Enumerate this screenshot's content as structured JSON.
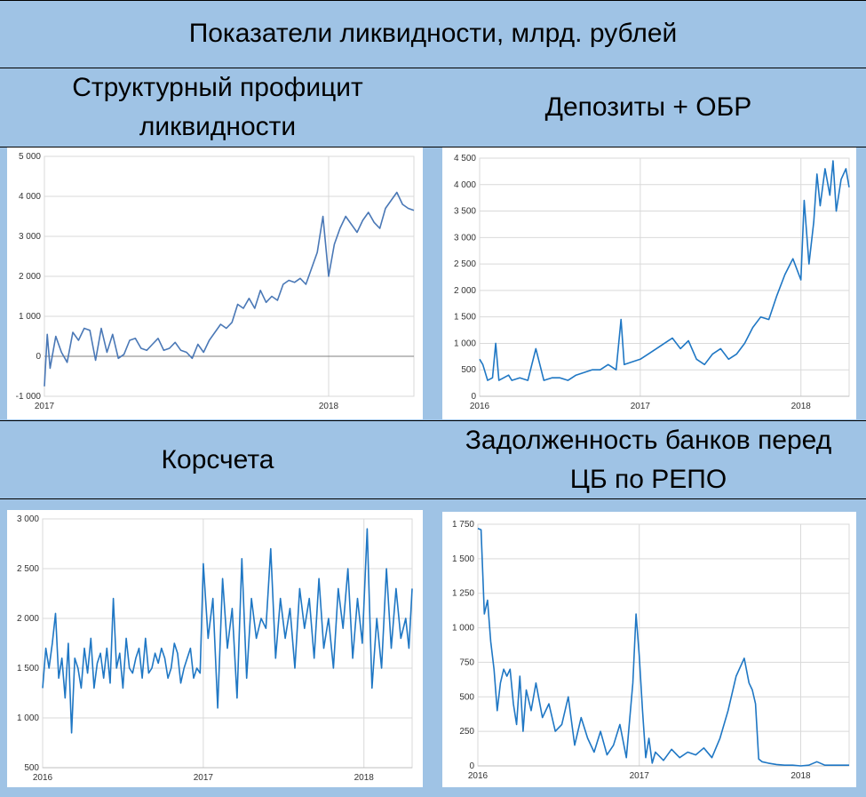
{
  "header": {
    "title": "Показатели ликвидности, млрд. рублей"
  },
  "panels": {
    "structural_surplus": {
      "title": "Структурный профицит ликвидности"
    },
    "deposits_obr": {
      "title": "Депозиты + ОБР"
    },
    "corr_accounts": {
      "title": "Корсчета"
    },
    "repo_debt": {
      "title": "Задолженность банков перед ЦБ по РЕПО"
    }
  },
  "colors": {
    "line": "#1f77c4",
    "line_alt": "#4a78b6",
    "background": "#9fc3e5"
  },
  "chart_data": [
    {
      "id": "structural_surplus",
      "type": "line",
      "title": "Структурный профицит ликвидности",
      "x_range": [
        2017.0,
        2018.3
      ],
      "ylim": [
        -1000,
        5000
      ],
      "yticks": [
        -1000,
        0,
        1000,
        2000,
        3000,
        4000,
        5000
      ],
      "ytick_labels": [
        "-1 000",
        "0",
        "1 000",
        "2 000",
        "3 000",
        "4 000",
        "5 000"
      ],
      "xticks": [
        2017,
        2018
      ],
      "xtick_labels": [
        "2017",
        "2018"
      ],
      "zero_line": true,
      "series": [
        {
          "x": [
            2017.0,
            2017.01,
            2017.02,
            2017.04,
            2017.06,
            2017.08,
            2017.1,
            2017.12,
            2017.14,
            2017.16,
            2017.18,
            2017.2,
            2017.22,
            2017.24,
            2017.26,
            2017.28,
            2017.3,
            2017.32,
            2017.34,
            2017.36,
            2017.38,
            2017.4,
            2017.42,
            2017.44,
            2017.46,
            2017.48,
            2017.5,
            2017.52,
            2017.54,
            2017.56,
            2017.58,
            2017.6,
            2017.62,
            2017.64,
            2017.66,
            2017.68,
            2017.7,
            2017.72,
            2017.74,
            2017.76,
            2017.78,
            2017.8,
            2017.82,
            2017.84,
            2017.86,
            2017.88,
            2017.9,
            2017.92,
            2017.94,
            2017.96,
            2017.98,
            2018.0,
            2018.02,
            2018.04,
            2018.06,
            2018.08,
            2018.1,
            2018.12,
            2018.14,
            2018.16,
            2018.18,
            2018.2,
            2018.22,
            2018.24,
            2018.26,
            2018.28,
            2018.3
          ],
          "y": [
            -750,
            550,
            -300,
            500,
            100,
            -150,
            600,
            400,
            700,
            650,
            -100,
            700,
            100,
            550,
            -50,
            50,
            400,
            450,
            200,
            150,
            300,
            450,
            150,
            200,
            350,
            150,
            100,
            -50,
            300,
            100,
            400,
            600,
            800,
            700,
            850,
            1300,
            1200,
            1450,
            1200,
            1650,
            1350,
            1500,
            1400,
            1800,
            1900,
            1850,
            1950,
            1800,
            2200,
            2600,
            3500,
            2000,
            2800,
            3200,
            3500,
            3300,
            3100,
            3400,
            3600,
            3350,
            3200,
            3700,
            3900,
            4100,
            3800,
            3700,
            3650
          ]
        }
      ]
    },
    {
      "id": "deposits_obr",
      "type": "line",
      "title": "Депозиты + ОБР",
      "x_range": [
        2016.0,
        2018.3
      ],
      "ylim": [
        0,
        4500
      ],
      "yticks": [
        0,
        500,
        1000,
        1500,
        2000,
        2500,
        3000,
        3500,
        4000,
        4500
      ],
      "ytick_labels": [
        "0",
        "500",
        "1 000",
        "1 500",
        "2 000",
        "2 500",
        "3 000",
        "3 500",
        "4 000",
        "4 500"
      ],
      "xticks": [
        2016,
        2017,
        2018
      ],
      "xtick_labels": [
        "2016",
        "2017",
        "2018"
      ],
      "series": [
        {
          "x": [
            2016.0,
            2016.02,
            2016.05,
            2016.08,
            2016.1,
            2016.12,
            2016.15,
            2016.18,
            2016.2,
            2016.25,
            2016.3,
            2016.35,
            2016.4,
            2016.45,
            2016.5,
            2016.55,
            2016.6,
            2016.65,
            2016.7,
            2016.75,
            2016.8,
            2016.85,
            2016.88,
            2016.9,
            2016.95,
            2017.0,
            2017.05,
            2017.1,
            2017.15,
            2017.2,
            2017.25,
            2017.3,
            2017.35,
            2017.4,
            2017.45,
            2017.5,
            2017.55,
            2017.6,
            2017.65,
            2017.7,
            2017.75,
            2017.8,
            2017.85,
            2017.9,
            2017.95,
            2018.0,
            2018.02,
            2018.05,
            2018.08,
            2018.1,
            2018.12,
            2018.15,
            2018.18,
            2018.2,
            2018.22,
            2018.25,
            2018.28,
            2018.3
          ],
          "y": [
            700,
            600,
            300,
            350,
            1000,
            300,
            350,
            400,
            300,
            350,
            300,
            900,
            300,
            350,
            350,
            300,
            400,
            450,
            500,
            500,
            600,
            500,
            1450,
            600,
            650,
            700,
            800,
            900,
            1000,
            1100,
            900,
            1050,
            700,
            600,
            800,
            900,
            700,
            800,
            1000,
            1300,
            1500,
            1450,
            1900,
            2300,
            2600,
            2200,
            3700,
            2500,
            3300,
            4200,
            3600,
            4300,
            3800,
            4450,
            3500,
            4100,
            4300,
            3950
          ]
        }
      ]
    },
    {
      "id": "corr_accounts",
      "type": "line",
      "title": "Корсчета",
      "x_range": [
        2016.0,
        2018.3
      ],
      "ylim": [
        500,
        3000
      ],
      "yticks": [
        500,
        1000,
        1500,
        2000,
        2500,
        3000
      ],
      "ytick_labels": [
        "500",
        "1 000",
        "1 500",
        "2 000",
        "2 500",
        "3 000"
      ],
      "xticks": [
        2016,
        2017,
        2018
      ],
      "xtick_labels": [
        "2016",
        "2017",
        "2018"
      ],
      "series": [
        {
          "x": [
            2016.0,
            2016.02,
            2016.04,
            2016.06,
            2016.08,
            2016.1,
            2016.12,
            2016.14,
            2016.16,
            2016.18,
            2016.2,
            2016.22,
            2016.24,
            2016.26,
            2016.28,
            2016.3,
            2016.32,
            2016.34,
            2016.36,
            2016.38,
            2016.4,
            2016.42,
            2016.44,
            2016.46,
            2016.48,
            2016.5,
            2016.52,
            2016.54,
            2016.56,
            2016.58,
            2016.6,
            2016.62,
            2016.64,
            2016.66,
            2016.68,
            2016.7,
            2016.72,
            2016.74,
            2016.76,
            2016.78,
            2016.8,
            2016.82,
            2016.84,
            2016.86,
            2016.88,
            2016.9,
            2016.92,
            2016.94,
            2016.96,
            2016.98,
            2017.0,
            2017.03,
            2017.06,
            2017.09,
            2017.12,
            2017.15,
            2017.18,
            2017.21,
            2017.24,
            2017.27,
            2017.3,
            2017.33,
            2017.36,
            2017.39,
            2017.42,
            2017.45,
            2017.48,
            2017.51,
            2017.54,
            2017.57,
            2017.6,
            2017.63,
            2017.66,
            2017.69,
            2017.72,
            2017.75,
            2017.78,
            2017.81,
            2017.84,
            2017.87,
            2017.9,
            2017.93,
            2017.96,
            2017.99,
            2018.02,
            2018.05,
            2018.08,
            2018.11,
            2018.14,
            2018.17,
            2018.2,
            2018.23,
            2018.26,
            2018.28,
            2018.3
          ],
          "y": [
            1300,
            1700,
            1500,
            1750,
            2050,
            1400,
            1600,
            1200,
            1750,
            850,
            1600,
            1500,
            1300,
            1700,
            1450,
            1800,
            1300,
            1550,
            1650,
            1400,
            1700,
            1350,
            2200,
            1500,
            1650,
            1300,
            1800,
            1500,
            1450,
            1600,
            1700,
            1400,
            1800,
            1450,
            1500,
            1650,
            1550,
            1700,
            1600,
            1400,
            1500,
            1750,
            1650,
            1350,
            1500,
            1600,
            1700,
            1400,
            1500,
            1450,
            2550,
            1800,
            2200,
            1100,
            2400,
            1700,
            2100,
            1200,
            2600,
            1400,
            2200,
            1800,
            2000,
            1900,
            2700,
            1600,
            2200,
            1800,
            2100,
            1500,
            2300,
            1900,
            2200,
            1600,
            2400,
            1700,
            2000,
            1500,
            2300,
            1900,
            2500,
            1600,
            2200,
            1750,
            2900,
            1300,
            2000,
            1500,
            2500,
            1700,
            2300,
            1800,
            2000,
            1700,
            2300
          ]
        }
      ]
    },
    {
      "id": "repo_debt",
      "type": "line",
      "title": "Задолженность банков перед ЦБ по РЕПО",
      "x_range": [
        2016.0,
        2018.3
      ],
      "ylim": [
        0,
        1750
      ],
      "yticks": [
        0,
        250,
        500,
        750,
        1000,
        1250,
        1500,
        1750
      ],
      "ytick_labels": [
        "0",
        "250",
        "500",
        "750",
        "1 000",
        "1 250",
        "1 500",
        "1 750"
      ],
      "xticks": [
        2016,
        2017,
        2018
      ],
      "xtick_labels": [
        "2016",
        "2017",
        "2018"
      ],
      "series": [
        {
          "x": [
            2016.0,
            2016.02,
            2016.04,
            2016.06,
            2016.08,
            2016.1,
            2016.12,
            2016.14,
            2016.16,
            2016.18,
            2016.2,
            2016.22,
            2016.24,
            2016.26,
            2016.28,
            2016.3,
            2016.33,
            2016.36,
            2016.4,
            2016.44,
            2016.48,
            2016.52,
            2016.56,
            2016.6,
            2016.64,
            2016.68,
            2016.72,
            2016.76,
            2016.8,
            2016.84,
            2016.88,
            2016.92,
            2016.96,
            2016.98,
            2017.0,
            2017.02,
            2017.04,
            2017.06,
            2017.08,
            2017.1,
            2017.15,
            2017.2,
            2017.25,
            2017.3,
            2017.35,
            2017.4,
            2017.45,
            2017.5,
            2017.55,
            2017.6,
            2017.65,
            2017.68,
            2017.7,
            2017.72,
            2017.74,
            2017.76,
            2017.8,
            2017.85,
            2017.9,
            2017.95,
            2018.0,
            2018.05,
            2018.1,
            2018.15,
            2018.2,
            2018.25,
            2018.3
          ],
          "y": [
            1720,
            1710,
            1100,
            1200,
            900,
            700,
            400,
            600,
            700,
            650,
            700,
            450,
            300,
            650,
            250,
            550,
            400,
            600,
            350,
            450,
            250,
            300,
            500,
            150,
            350,
            200,
            100,
            250,
            80,
            150,
            300,
            60,
            600,
            1100,
            800,
            400,
            60,
            200,
            20,
            100,
            40,
            120,
            60,
            100,
            80,
            130,
            60,
            200,
            400,
            650,
            780,
            600,
            550,
            450,
            50,
            30,
            20,
            10,
            5,
            5,
            0,
            5,
            30,
            5,
            5,
            5,
            5
          ]
        }
      ]
    }
  ]
}
